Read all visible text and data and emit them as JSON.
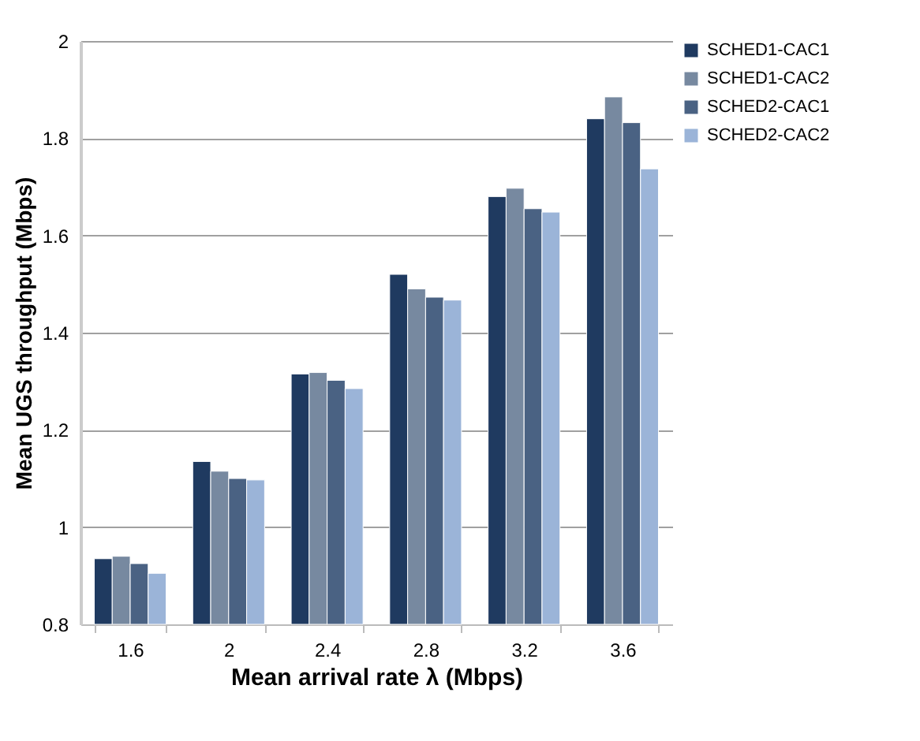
{
  "chart_data": {
    "type": "bar",
    "xlabel": "Mean arrival rate λ (Mbps)",
    "ylabel": "Mean UGS throughput (Mbps)",
    "categories": [
      "1.6",
      "2",
      "2.4",
      "2.8",
      "3.2",
      "3.6"
    ],
    "series": [
      {
        "name": "SCHED1-CAC1",
        "color": "#1f3a60",
        "values": [
          0.935,
          1.135,
          1.315,
          1.52,
          1.68,
          1.84
        ]
      },
      {
        "name": "SCHED1-CAC2",
        "color": "#7789a0",
        "values": [
          0.94,
          1.115,
          1.318,
          1.49,
          1.697,
          1.885
        ]
      },
      {
        "name": "SCHED2-CAC1",
        "color": "#4a6283",
        "values": [
          0.925,
          1.1,
          1.302,
          1.473,
          1.655,
          1.832
        ]
      },
      {
        "name": "SCHED2-CAC2",
        "color": "#9bb4d8",
        "values": [
          0.905,
          1.097,
          1.285,
          1.467,
          1.648,
          1.737
        ]
      }
    ],
    "ylim": [
      0.8,
      2
    ],
    "yticks": [
      0.8,
      1,
      1.2,
      1.4,
      1.6,
      1.8,
      2
    ],
    "grid": "y",
    "legend": "right"
  }
}
